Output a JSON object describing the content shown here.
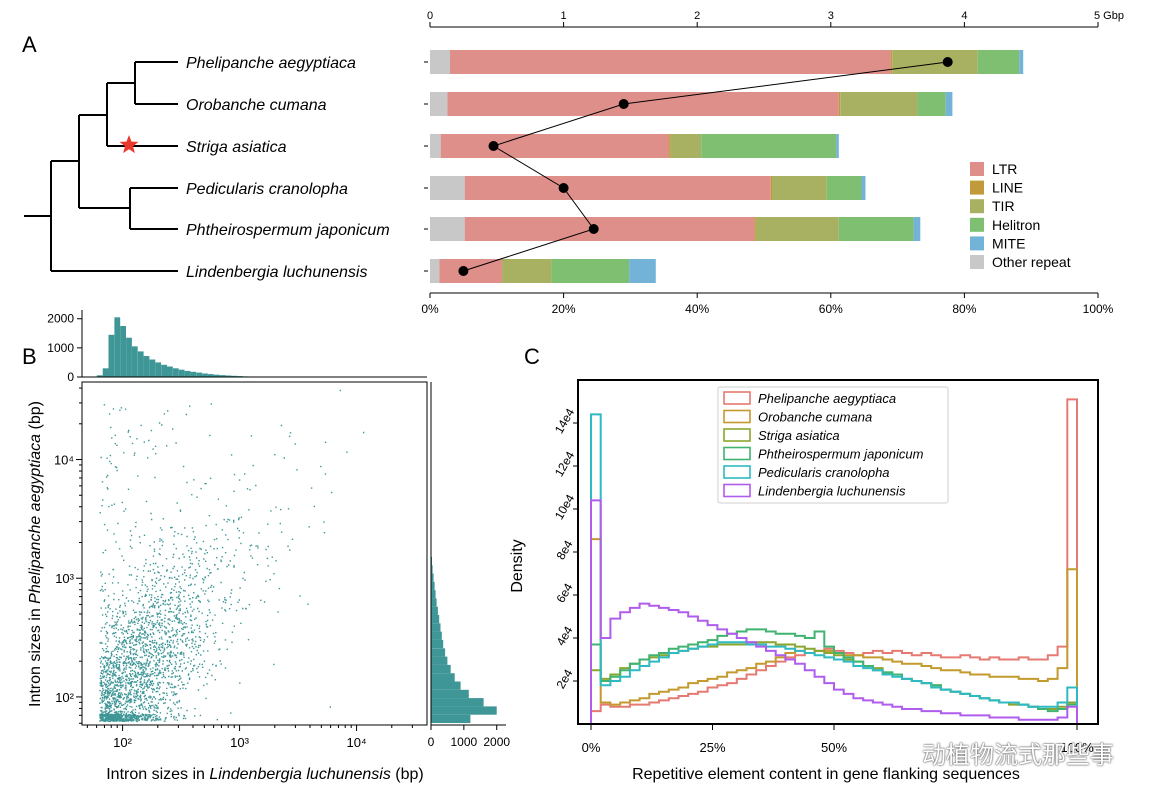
{
  "panel_labels": {
    "a": "A",
    "b": "B",
    "c": "C"
  },
  "watermark": "动植物流式那些事",
  "colors": {
    "LTR": "#de8f8a",
    "LINE": "#c19a3c",
    "TIR": "#a8b061",
    "Helitron": "#7fbf72",
    "MITE": "#74b3d8",
    "Other repeat": "#c8c8c8",
    "scatter": "#3f9697",
    "line_marker": "#000000"
  },
  "chart_data": [
    {
      "type": "tree",
      "panel": "A",
      "leaves": [
        "Phelipanche aegyptiaca",
        "Orobanche cumana",
        "Striga asiatica",
        "Pedicularis cranolopha",
        "Phtheirospermum japonicum",
        "Lindenbergia luchunensis"
      ],
      "topology": "(Lindenbergia luchunensis,((Pedicularis cranolopha,Phtheirospermum japonicum),((Phelipanche aegyptiaca,Orobanche cumana),Striga asiatica)))",
      "marker": {
        "shape": "star",
        "color": "#e8392c",
        "branch": "Orobanche-Phelipanche-Striga clade"
      }
    },
    {
      "type": "bar",
      "panel": "A",
      "orientation": "horizontal-stacked",
      "categories": [
        "Phelipanche aegyptiaca",
        "Orobanche cumana",
        "Striga asiatica",
        "Pedicularis cranolopha",
        "Phtheirospermum japonicum",
        "Lindenbergia luchunensis"
      ],
      "top_axis": {
        "unit": "Gbp",
        "range": [
          0,
          5
        ],
        "ticks": [
          "0",
          "1",
          "2",
          "3",
          "4",
          "5 Gbp"
        ]
      },
      "bottom_axis": {
        "range": [
          0,
          100
        ],
        "ticks": [
          "0%",
          "20%",
          "40%",
          "60%",
          "80%",
          "100%"
        ]
      },
      "series": [
        {
          "name": "Other repeat",
          "values": [
            0.15,
            0.13,
            0.08,
            0.26,
            0.26,
            0.07
          ]
        },
        {
          "name": "LTR",
          "values": [
            3.3,
            2.93,
            1.71,
            2.29,
            2.17,
            0.47
          ]
        },
        {
          "name": "LINE",
          "values": [
            0.01,
            0.01,
            0.01,
            0.01,
            0.01,
            0.0
          ]
        },
        {
          "name": "TIR",
          "values": [
            0.64,
            0.58,
            0.23,
            0.41,
            0.62,
            0.37
          ]
        },
        {
          "name": "Helitron",
          "values": [
            0.31,
            0.21,
            1.01,
            0.26,
            0.56,
            0.58
          ]
        },
        {
          "name": "MITE",
          "values": [
            0.03,
            0.05,
            0.02,
            0.03,
            0.05,
            0.2
          ]
        }
      ],
      "line_series": {
        "name": "",
        "values": [
          77.5,
          29,
          9.5,
          20,
          24.5,
          5
        ]
      },
      "legend": {
        "position": "right",
        "entries": [
          "LTR",
          "LINE",
          "TIR",
          "Helitron",
          "MITE",
          "Other repeat"
        ]
      }
    },
    {
      "type": "scatter",
      "panel": "B",
      "xlabel_prefix": "Intron sizes in ",
      "xlabel_species": "Lindenbergia luchunensis",
      "xlabel_suffix": " (bp)",
      "ylabel_prefix": "Intron sizes in ",
      "ylabel_species": "Phelipanche aegyptiaca",
      "ylabel_suffix": " (bp)",
      "xscale": "log",
      "yscale": "log",
      "xlim": [
        45,
        40000
      ],
      "ylim": [
        58,
        45000
      ],
      "x_ticks": [
        "10²",
        "10³",
        "10⁴"
      ],
      "y_ticks": [
        "10²",
        "10³",
        "10⁴"
      ],
      "top_hist": {
        "ticks": [
          "0",
          "1000",
          "2000"
        ],
        "range": [
          0,
          2300
        ],
        "bins_log10": [
          1.78,
          1.83,
          1.88,
          1.93,
          1.98,
          2.03,
          2.08,
          2.13,
          2.18,
          2.23,
          2.28,
          2.33,
          2.38,
          2.43,
          2.48,
          2.53,
          2.58,
          2.63,
          2.68,
          2.73,
          2.78,
          2.83,
          2.88,
          2.93,
          2.98,
          3.03,
          3.08,
          3.13
        ],
        "counts": [
          60,
          300,
          1450,
          2050,
          1750,
          1350,
          1050,
          880,
          720,
          600,
          500,
          420,
          360,
          300,
          250,
          210,
          180,
          150,
          120,
          100,
          80,
          65,
          50,
          40,
          30,
          22,
          16,
          10
        ]
      },
      "right_hist": {
        "ticks": [
          "0",
          "1000",
          "2000"
        ],
        "range": [
          0,
          2100
        ],
        "bins_log10": [
          1.78,
          1.85,
          1.92,
          1.99,
          2.06,
          2.13,
          2.2,
          2.27,
          2.34,
          2.41,
          2.48,
          2.55,
          2.62,
          2.69,
          2.76,
          2.83,
          2.9,
          2.97,
          3.04,
          3.11
        ],
        "counts": [
          1200,
          2000,
          1600,
          1150,
          900,
          720,
          600,
          500,
          430,
          370,
          330,
          290,
          250,
          210,
          170,
          140,
          110,
          80,
          50,
          30
        ]
      }
    },
    {
      "type": "line",
      "panel": "C",
      "subtype": "step-histogram",
      "xlabel": "Repetitive element content in gene flanking sequences",
      "ylabel": "Density",
      "xlim": [
        0,
        100
      ],
      "ylim": [
        0,
        16
      ],
      "x_ticks": [
        "0%",
        "25%",
        "50%",
        "100%"
      ],
      "y_ticks": [
        "2e4",
        "4e4",
        "6e4",
        "8e4",
        "10e4",
        "12e4",
        "14e4"
      ],
      "legend": {
        "position": "top-center"
      },
      "series": [
        {
          "name": "Phelipanche aegyptiaca",
          "color": "#e67a72",
          "values": [
            0.6,
            0.9,
            0.8,
            0.8,
            0.9,
            0.9,
            1.0,
            1.1,
            1.2,
            1.3,
            1.4,
            1.5,
            1.7,
            1.8,
            1.9,
            2.1,
            2.3,
            2.5,
            2.7,
            2.9,
            3.1,
            3.2,
            3.3,
            3.4,
            3.5,
            3.4,
            3.3,
            3.2,
            3.3,
            3.4,
            3.3,
            3.4,
            3.3,
            3.2,
            3.3,
            3.2,
            3.1,
            3.1,
            3.2,
            3.1,
            3.0,
            3.1,
            3.0,
            3.0,
            3.1,
            3.0,
            3.0,
            3.2,
            3.6,
            15.1
          ]
        },
        {
          "name": "Orobanche cumana",
          "color": "#c49a2e",
          "values": [
            8.6,
            1.0,
            0.9,
            1.0,
            1.1,
            1.2,
            1.4,
            1.5,
            1.6,
            1.7,
            1.9,
            2.0,
            2.1,
            2.2,
            2.4,
            2.5,
            2.6,
            2.8,
            2.9,
            3.1,
            3.3,
            3.4,
            3.3,
            3.4,
            3.4,
            3.3,
            3.2,
            3.2,
            3.1,
            3.1,
            3.0,
            2.9,
            2.8,
            2.8,
            2.7,
            2.6,
            2.5,
            2.5,
            2.4,
            2.3,
            2.3,
            2.2,
            2.2,
            2.2,
            2.1,
            2.1,
            2.0,
            2.1,
            2.6,
            7.2
          ]
        },
        {
          "name": "Striga asiatica",
          "color": "#8aa62e",
          "values": [
            2.5,
            2.1,
            2.3,
            2.6,
            2.8,
            3.0,
            3.1,
            3.2,
            3.3,
            3.4,
            3.5,
            3.6,
            3.6,
            3.7,
            3.7,
            3.7,
            3.8,
            3.8,
            3.8,
            3.7,
            3.7,
            3.6,
            3.5,
            3.4,
            3.3,
            3.2,
            3.0,
            2.9,
            2.7,
            2.6,
            2.4,
            2.3,
            2.1,
            2.0,
            1.9,
            1.8,
            1.6,
            1.5,
            1.4,
            1.3,
            1.2,
            1.1,
            1.0,
            0.9,
            0.9,
            0.8,
            0.7,
            0.7,
            0.8,
            1.0
          ]
        },
        {
          "name": "Phtheirospermum japonicum",
          "color": "#3fb36f",
          "values": [
            3.7,
            2.0,
            2.2,
            2.5,
            2.8,
            3.0,
            3.2,
            3.3,
            3.5,
            3.6,
            3.7,
            3.8,
            3.9,
            4.1,
            4.2,
            4.3,
            4.4,
            4.4,
            4.3,
            4.2,
            4.2,
            4.1,
            4.0,
            4.3,
            3.6,
            3.3,
            3.1,
            2.9,
            2.7,
            2.5,
            2.4,
            2.3,
            2.1,
            2.0,
            1.9,
            1.8,
            1.6,
            1.5,
            1.4,
            1.3,
            1.2,
            1.1,
            1.0,
            1.0,
            0.9,
            0.8,
            0.7,
            0.6,
            0.7,
            0.9
          ]
        },
        {
          "name": "Pedicularis cranolopha",
          "color": "#2fb9c3",
          "values": [
            14.4,
            1.8,
            2.0,
            2.2,
            2.5,
            2.7,
            2.9,
            3.1,
            3.3,
            3.4,
            3.5,
            3.6,
            3.7,
            3.8,
            3.8,
            3.8,
            3.7,
            3.7,
            3.6,
            3.6,
            3.5,
            3.4,
            3.3,
            3.2,
            3.1,
            3.0,
            2.9,
            2.7,
            2.6,
            2.5,
            2.3,
            2.2,
            2.1,
            2.0,
            1.9,
            1.7,
            1.6,
            1.5,
            1.4,
            1.3,
            1.2,
            1.1,
            1.0,
            1.0,
            0.9,
            0.8,
            0.8,
            0.8,
            1.0,
            1.7
          ]
        },
        {
          "name": "Lindenbergia luchunensis",
          "color": "#b05ced",
          "values": [
            10.4,
            4.0,
            4.9,
            5.2,
            5.4,
            5.6,
            5.5,
            5.4,
            5.3,
            5.2,
            5.0,
            4.8,
            4.6,
            4.4,
            4.2,
            4.0,
            3.8,
            3.6,
            3.4,
            3.2,
            3.0,
            2.8,
            2.5,
            2.2,
            1.9,
            1.6,
            1.4,
            1.2,
            1.1,
            1.0,
            0.9,
            0.8,
            0.7,
            0.7,
            0.6,
            0.6,
            0.5,
            0.5,
            0.4,
            0.4,
            0.4,
            0.3,
            0.3,
            0.3,
            0.2,
            0.2,
            0.2,
            0.2,
            0.3,
            0.8
          ]
        }
      ]
    }
  ]
}
